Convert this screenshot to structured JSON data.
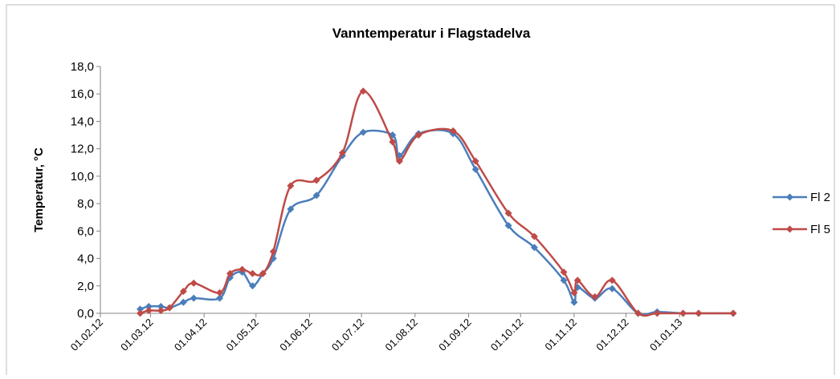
{
  "chart_data": {
    "type": "line",
    "title": "Vanntemperatur i Flagstadelva",
    "y_label": "Temperatur, °C",
    "x": [
      "24.02.12",
      "29.02.12",
      "07.03.12",
      "12.03.12",
      "20.03.12",
      "26.03.12",
      "10.04.12",
      "16.04.12",
      "23.04.12",
      "29.04.12",
      "05.05.12",
      "11.05.12",
      "21.05.12",
      "05.06.12",
      "20.06.12",
      "02.07.12",
      "19.07.12",
      "23.07.12",
      "03.08.12",
      "23.08.12",
      "05.09.12",
      "24.09.12",
      "09.10.12",
      "26.10.12",
      "01.11.12",
      "03.11.12",
      "13.11.12",
      "23.11.12",
      "08.12.12",
      "19.12.12",
      "03.01.13",
      "12.01.13",
      "01.02.13"
    ],
    "series": [
      {
        "name": "Fl 2",
        "color": "#4a7ebb",
        "values": [
          0.3,
          0.5,
          0.5,
          0.4,
          0.8,
          1.1,
          1.1,
          2.6,
          3.0,
          2.0,
          2.9,
          4.0,
          7.6,
          8.6,
          11.5,
          13.2,
          13.0,
          11.5,
          13.1,
          13.1,
          10.5,
          6.4,
          4.8,
          2.4,
          0.8,
          1.9,
          1.1,
          1.8,
          0.0,
          0.1,
          0.0,
          0.0,
          0.0
        ]
      },
      {
        "name": "Fl 5",
        "color": "#be4b48",
        "values": [
          0.0,
          0.2,
          0.2,
          0.4,
          1.6,
          2.2,
          1.5,
          2.9,
          3.2,
          2.9,
          2.9,
          4.5,
          9.3,
          9.7,
          11.7,
          16.2,
          12.5,
          11.1,
          13.0,
          13.3,
          11.1,
          7.3,
          5.6,
          3.0,
          1.5,
          2.4,
          1.2,
          2.4,
          0.0,
          0.0,
          0.0,
          0.0,
          0.0
        ]
      }
    ],
    "xlim": [
      "01.02.12",
      "01.02.13"
    ],
    "xticks": [
      "01.02.12",
      "01.03.12",
      "01.04.12",
      "01.05.12",
      "01.06.12",
      "01.07.12",
      "01.08.12",
      "01.09.12",
      "01.10.12",
      "01.11.12",
      "01.12.12",
      "01.01.13"
    ],
    "ylim": [
      0,
      18
    ],
    "yticks": [
      {
        "value": 0,
        "label": "0,0"
      },
      {
        "value": 2,
        "label": "2,0"
      },
      {
        "value": 4,
        "label": "4,0"
      },
      {
        "value": 6,
        "label": "6,0"
      },
      {
        "value": 8,
        "label": "8,0"
      },
      {
        "value": 10,
        "label": "10,0"
      },
      {
        "value": 12,
        "label": "12,0"
      },
      {
        "value": 14,
        "label": "14,0"
      },
      {
        "value": 16,
        "label": "16,0"
      },
      {
        "value": 18,
        "label": "18,0"
      }
    ],
    "grid": false,
    "legend": "right"
  }
}
